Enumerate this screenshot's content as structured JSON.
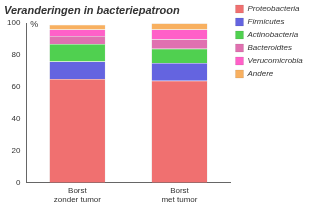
{
  "chart_data": {
    "type": "bar",
    "stacked": true,
    "title": "Veranderingen in bacteriepatroon",
    "y_label": "%",
    "categories": [
      "Borst zonder tumor",
      "Borst met tumor"
    ],
    "series": [
      {
        "name": "Proteobacteria",
        "color": "#f07070",
        "values": [
          65,
          64
        ]
      },
      {
        "name": "Firmicutes",
        "color": "#6464e0",
        "values": [
          11,
          11
        ]
      },
      {
        "name": "Actinobacteria",
        "color": "#50d050",
        "values": [
          11,
          9
        ]
      },
      {
        "name": "Bacteroidtes",
        "color": "#e070b0",
        "values": [
          5,
          6
        ]
      },
      {
        "name": "Verucomicrobia",
        "color": "#ff60c8",
        "values": [
          4,
          6
        ]
      },
      {
        "name": "Andere",
        "color": "#f8b060",
        "values": [
          3,
          4
        ]
      }
    ],
    "ylim": [
      0,
      100
    ],
    "yticks": [
      0,
      20,
      40,
      60,
      80,
      100
    ],
    "grid": false,
    "legend": "right"
  }
}
